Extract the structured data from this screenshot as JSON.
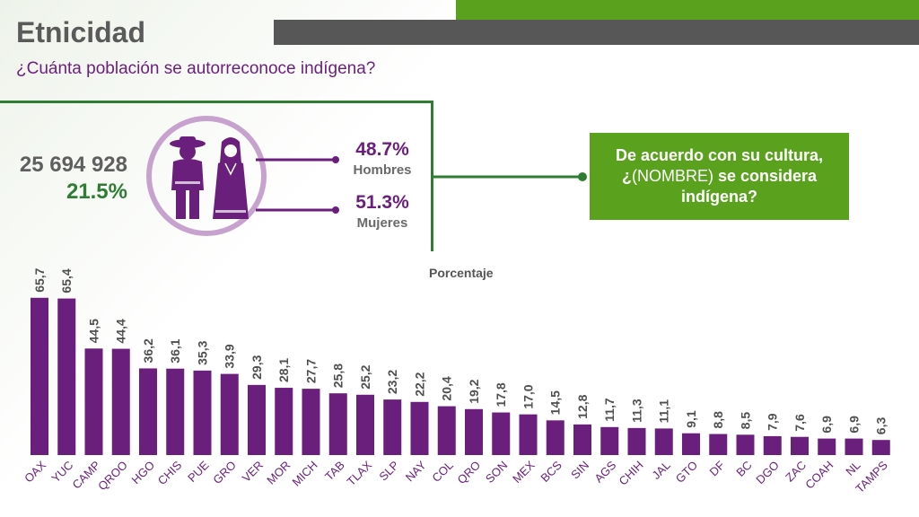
{
  "header": {
    "title": "Etnicidad",
    "subtitle": "¿Cuánta población se autorreconoce indígena?"
  },
  "summary": {
    "total": "25 694 928",
    "percent": "21.5%",
    "men_pct": "48.7%",
    "men_label": "Hombres",
    "women_pct": "51.3%",
    "women_label": "Mujeres"
  },
  "question": {
    "line1": "De acuerdo con su cultura,",
    "line2_prefix": "¿",
    "line2_mid": "(NOMBRE)",
    "line2_suffix": " se considera",
    "line3": "indígena?"
  },
  "icons": {
    "people": "indigenous-couple-icon"
  },
  "colors": {
    "bar": "#6b1f7c",
    "green": "#5aa11d",
    "dark_green": "#2e7d32",
    "gray": "#575757"
  },
  "chart_data": {
    "type": "bar",
    "ylabel": "Porcentaje",
    "categories": [
      "OAX",
      "YUC",
      "CAMP",
      "QROO",
      "HGO",
      "CHIS",
      "PUE",
      "GRO",
      "VER",
      "MOR",
      "MICH",
      "TAB",
      "TLAX",
      "SLP",
      "NAY",
      "COL",
      "QRO",
      "SON",
      "MEX",
      "BCS",
      "SIN",
      "AGS",
      "CHIH",
      "JAL",
      "GTO",
      "DF",
      "BC",
      "DGO",
      "ZAC",
      "COAH",
      "NL",
      "TAMPS"
    ],
    "values": [
      65.7,
      65.4,
      44.5,
      44.4,
      36.2,
      36.1,
      35.3,
      33.9,
      29.3,
      28.1,
      27.7,
      25.8,
      25.2,
      23.2,
      22.2,
      20.4,
      19.2,
      17.8,
      17.0,
      14.5,
      12.8,
      11.7,
      11.3,
      11.1,
      9.1,
      8.8,
      8.5,
      7.9,
      7.6,
      6.9,
      6.9,
      6.3
    ],
    "value_labels": [
      "65,7",
      "65,4",
      "44,5",
      "44,4",
      "36,2",
      "36,1",
      "35,3",
      "33,9",
      "29,3",
      "28,1",
      "27,7",
      "25,8",
      "25,2",
      "23,2",
      "22,2",
      "20,4",
      "19,2",
      "17,8",
      "17,0",
      "14,5",
      "12,8",
      "11,7",
      "11,3",
      "11,1",
      "9,1",
      "8,8",
      "8,5",
      "7,9",
      "7,6",
      "6,9",
      "6,9",
      "6,3"
    ],
    "ylim": [
      0,
      70
    ],
    "grid": false
  }
}
